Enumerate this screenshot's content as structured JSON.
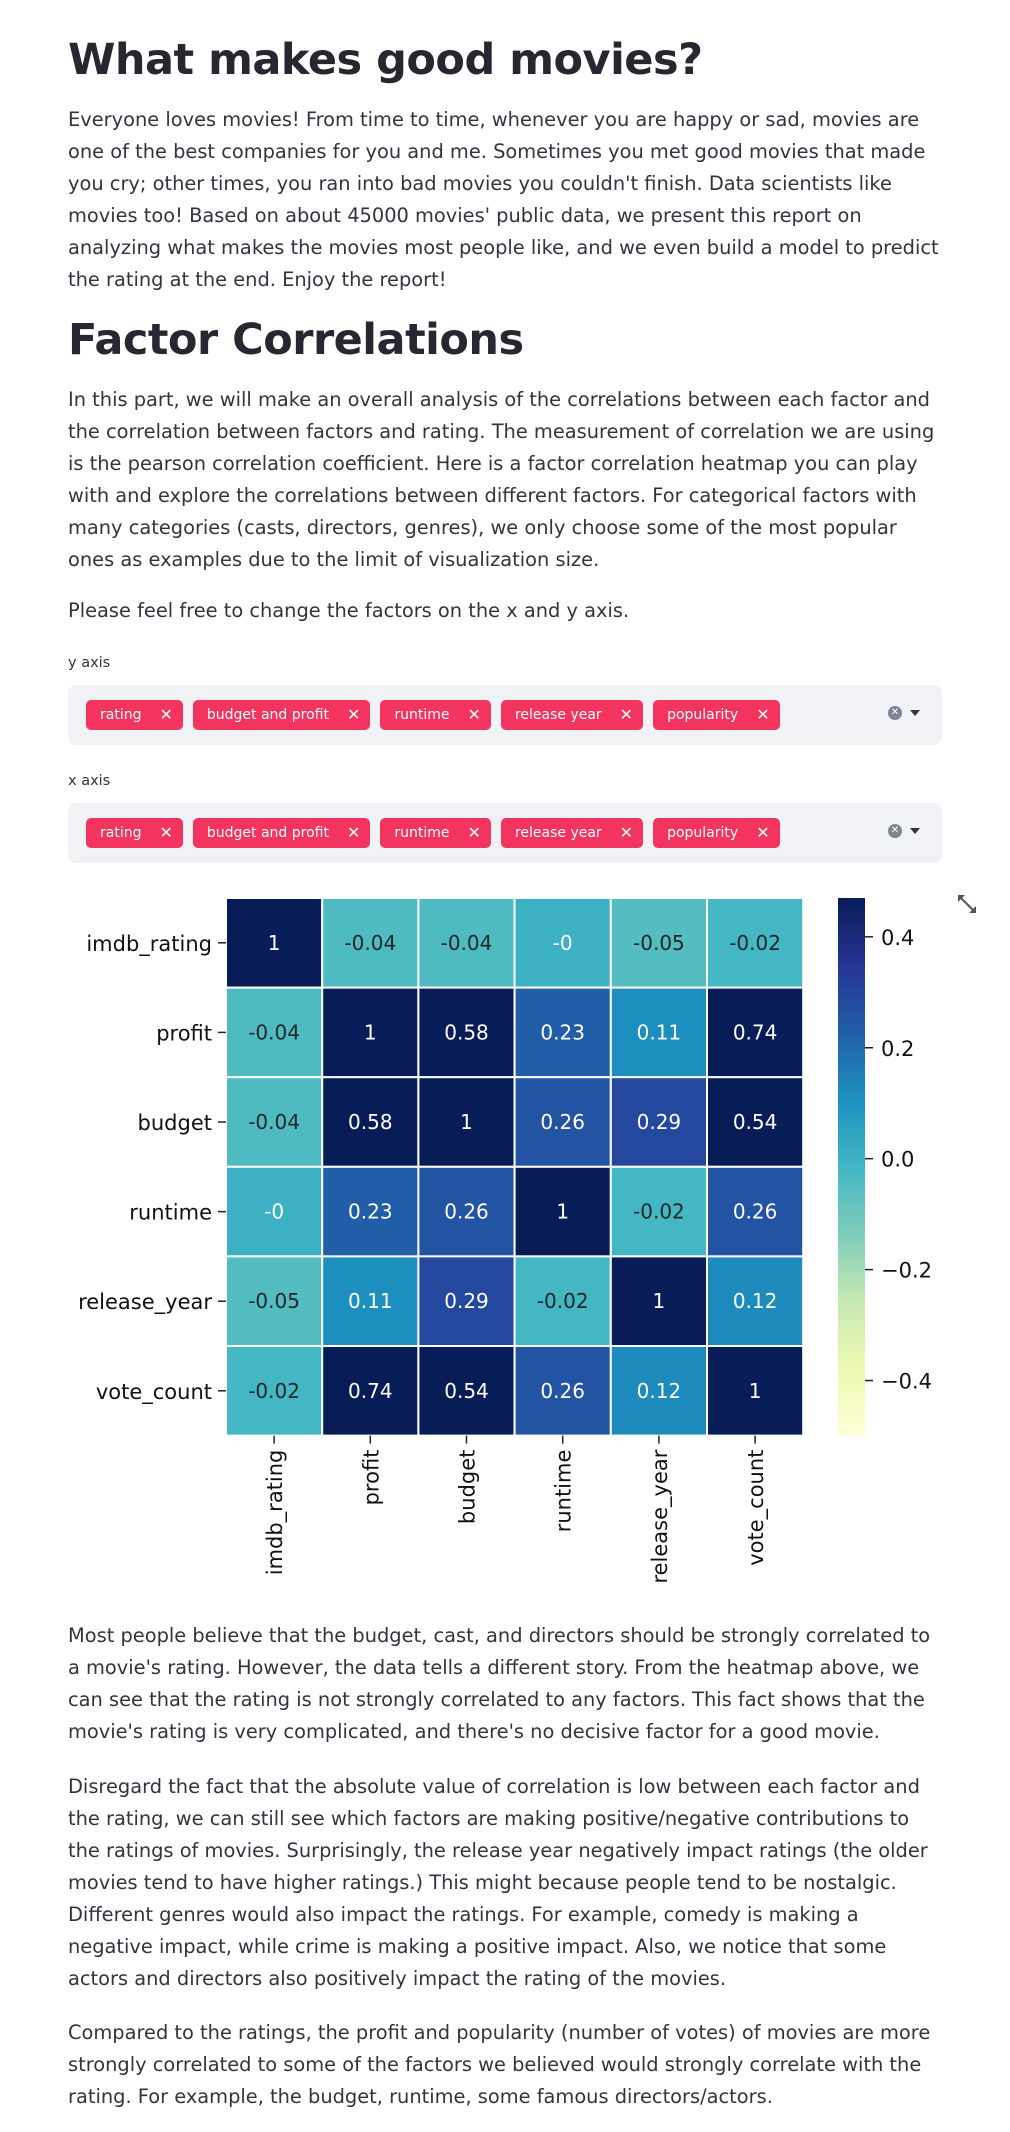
{
  "header": {
    "title": "What makes good movies?",
    "intro": "Everyone loves movies! From time to time, whenever you are happy or sad, movies are one of the best companies for you and me. Sometimes you met good movies that made you cry; other times, you ran into bad movies you couldn't finish. Data scientists like movies too! Based on about 45000 movies' public data, we present this report on analyzing what makes the movies most people like, and we even build a model to predict the rating at the end. Enjoy the report!"
  },
  "section": {
    "title": "Factor Correlations",
    "paragraph": "In this part, we will make an overall analysis of the correlations between each factor and the correlation between factors and rating. The measurement of correlation we are using is the pearson correlation coefficient. Here is a factor correlation heatmap you can play with and explore the correlations between different factors. For categorical factors with many categories (casts, directors, genres), we only choose some of the most popular ones as examples due to the limit of visualization size.",
    "instruction": "Please feel free to change the factors on the x and y axis."
  },
  "y_axis_select": {
    "label": "y axis",
    "tags": [
      "rating",
      "budget and profit",
      "runtime",
      "release year",
      "popularity"
    ]
  },
  "x_axis_select": {
    "label": "x axis",
    "tags": [
      "rating",
      "budget and profit",
      "runtime",
      "release year",
      "popularity"
    ]
  },
  "colors": {
    "tag_bg": "#f2345e",
    "select_bg": "#f0f2f6",
    "colormap": "YlGnBu"
  },
  "chart_data": {
    "type": "heatmap",
    "rows": [
      "imdb_rating",
      "profit",
      "budget",
      "runtime",
      "release_year",
      "vote_count"
    ],
    "columns": [
      "imdb_rating",
      "profit",
      "budget",
      "runtime",
      "release_year",
      "vote_count"
    ],
    "values": [
      [
        1,
        -0.04,
        -0.04,
        0,
        -0.05,
        -0.02
      ],
      [
        -0.04,
        1,
        0.58,
        0.23,
        0.11,
        0.74
      ],
      [
        -0.04,
        0.58,
        1,
        0.26,
        0.29,
        0.54
      ],
      [
        0,
        0.23,
        0.26,
        1,
        -0.02,
        0.26
      ],
      [
        -0.05,
        0.11,
        0.29,
        -0.02,
        1,
        0.12
      ],
      [
        -0.02,
        0.74,
        0.54,
        0.26,
        0.12,
        1
      ]
    ],
    "value_labels": [
      [
        "1",
        "-0.04",
        "-0.04",
        "-0",
        "-0.05",
        "-0.02"
      ],
      [
        "-0.04",
        "1",
        "0.58",
        "0.23",
        "0.11",
        "0.74"
      ],
      [
        "-0.04",
        "0.58",
        "1",
        "0.26",
        "0.29",
        "0.54"
      ],
      [
        "-0",
        "0.23",
        "0.26",
        "1",
        "-0.02",
        "0.26"
      ],
      [
        "-0.05",
        "0.11",
        "0.29",
        "-0.02",
        "1",
        "0.12"
      ],
      [
        "-0.02",
        "0.74",
        "0.54",
        "0.26",
        "0.12",
        "1"
      ]
    ],
    "colorbar": {
      "vmin": -0.5,
      "vmax": 0.47,
      "ticks": [
        0.4,
        0.2,
        0.0,
        -0.2,
        -0.4
      ],
      "tick_labels": [
        "0.4",
        "0.2",
        "0.0",
        "−0.2",
        "−0.4"
      ]
    }
  },
  "results": {
    "p1": "Most people believe that the budget, cast, and directors should be strongly correlated to a movie's rating. However, the data tells a different story. From the heatmap above, we can see that the rating is not strongly correlated to any factors. This fact shows that the movie's rating is very complicated, and there's no decisive factor for a good movie.",
    "p2": "Disregard the fact that the absolute value of correlation is low between each factor and the rating, we can still see which factors are making positive/negative contributions to the ratings of movies. Surprisingly, the release year negatively impact ratings (the older movies tend to have higher ratings.) This might because people tend to be nostalgic. Different genres would also impact the ratings. For example, comedy is making a negative impact, while crime is making a positive impact. Also, we notice that some actors and directors also positively impact the rating of the movies.",
    "p3": "Compared to the ratings, the profit and popularity (number of votes) of movies are more strongly correlated to some of the factors we believed would strongly correlate with the rating. For example, the budget, runtime, some famous directors/actors."
  }
}
